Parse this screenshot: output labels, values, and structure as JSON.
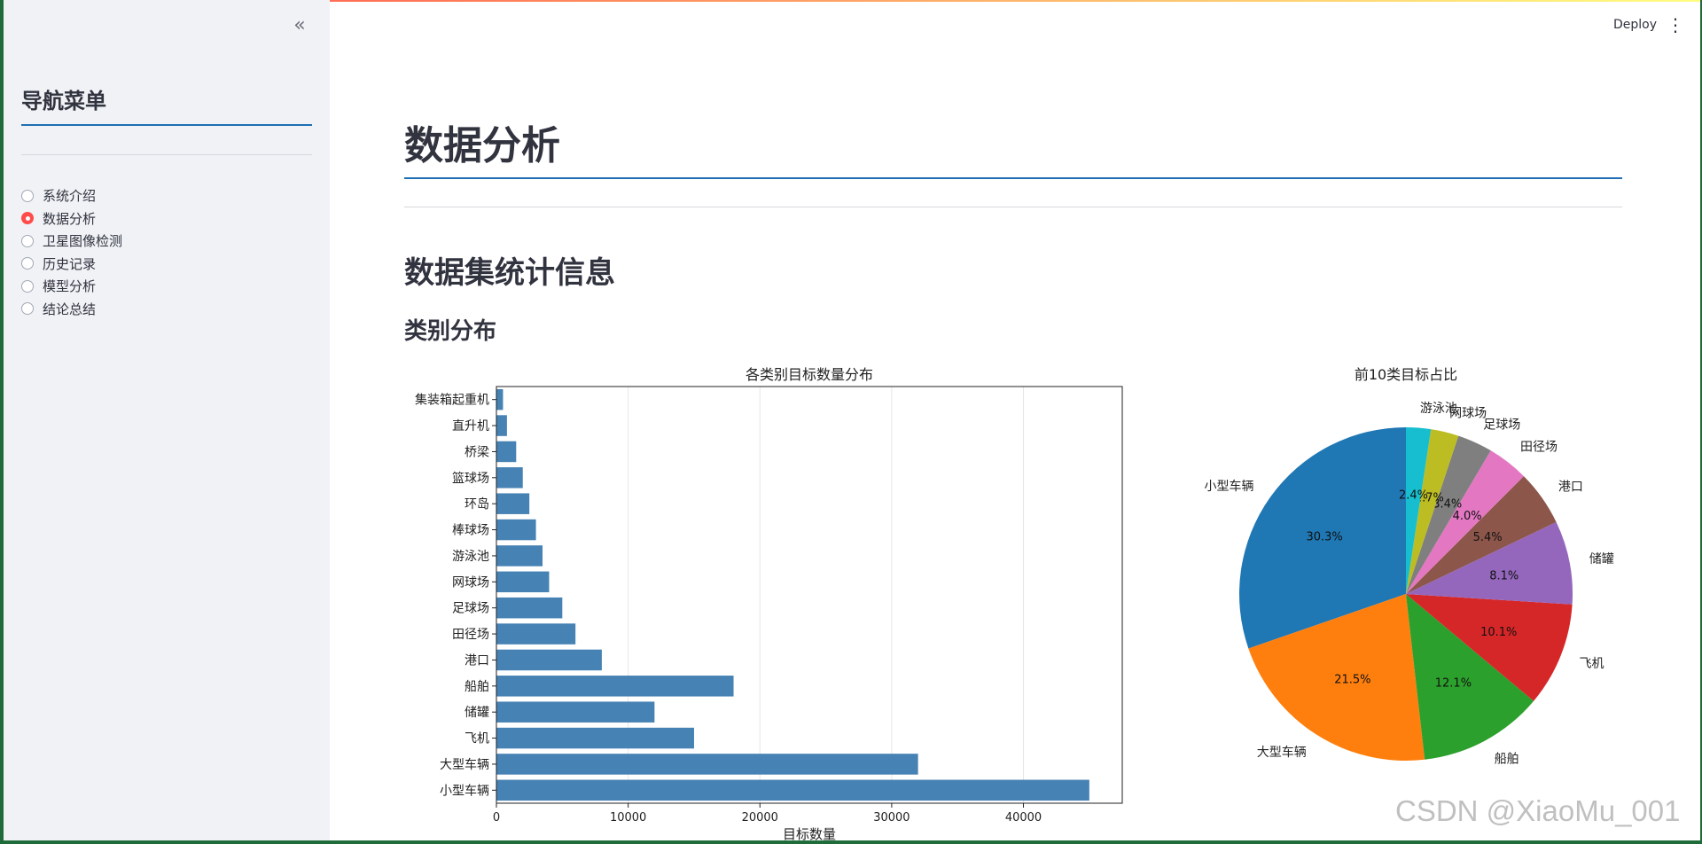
{
  "sidebar": {
    "collapse_icon": "«",
    "title": "导航菜单",
    "items": [
      {
        "label": "系统介绍",
        "selected": false
      },
      {
        "label": "数据分析",
        "selected": true
      },
      {
        "label": "卫星图像检测",
        "selected": false
      },
      {
        "label": "历史记录",
        "selected": false
      },
      {
        "label": "模型分析",
        "selected": false
      },
      {
        "label": "结论总结",
        "selected": false
      }
    ]
  },
  "header": {
    "deploy_label": "Deploy",
    "menu_icon": "⋮"
  },
  "main": {
    "title": "数据分析",
    "section_title": "数据集统计信息",
    "subsection_title": "类别分布"
  },
  "watermark": "CSDN @XiaoMu_001",
  "colors": {
    "accent": "#ff4b4b",
    "bar": "#4682b4",
    "title_line": "#1f6fb2",
    "pie": [
      "#1f77b4",
      "#ff7f0e",
      "#2ca02c",
      "#d62728",
      "#9467bd",
      "#8c564b",
      "#e377c2",
      "#7f7f7f",
      "#bcbd22",
      "#17becf"
    ]
  },
  "chart_data": [
    {
      "type": "bar",
      "orientation": "horizontal",
      "title": "各类别目标数量分布",
      "xlabel": "目标数量",
      "ylabel": "",
      "categories": [
        "小型车辆",
        "大型车辆",
        "飞机",
        "储罐",
        "船舶",
        "港口",
        "田径场",
        "足球场",
        "网球场",
        "游泳池",
        "棒球场",
        "环岛",
        "篮球场",
        "桥梁",
        "直升机",
        "集装箱起重机"
      ],
      "values": [
        45000,
        32000,
        15000,
        12000,
        18000,
        8000,
        6000,
        5000,
        4000,
        3500,
        3000,
        2500,
        2000,
        1500,
        800,
        500
      ],
      "xlim": [
        0,
        47500
      ],
      "xticks": [
        0,
        10000,
        20000,
        30000,
        40000
      ],
      "grid": "vertical"
    },
    {
      "type": "pie",
      "title": "前10类目标占比",
      "labels": [
        "小型车辆",
        "大型车辆",
        "船舶",
        "飞机",
        "储罐",
        "港口",
        "田径场",
        "足球场",
        "网球场",
        "游泳池"
      ],
      "values": [
        30.3,
        21.5,
        12.1,
        10.1,
        8.1,
        5.4,
        4.0,
        3.4,
        2.7,
        2.4
      ],
      "value_labels": [
        "30.3%",
        "21.5%",
        "12.1%",
        "10.1%",
        "8.1%",
        "5.4%",
        "4.0%",
        "3.4%",
        "2.7%",
        "2.4%"
      ],
      "start_angle": 90,
      "direction": "counterclockwise"
    }
  ]
}
